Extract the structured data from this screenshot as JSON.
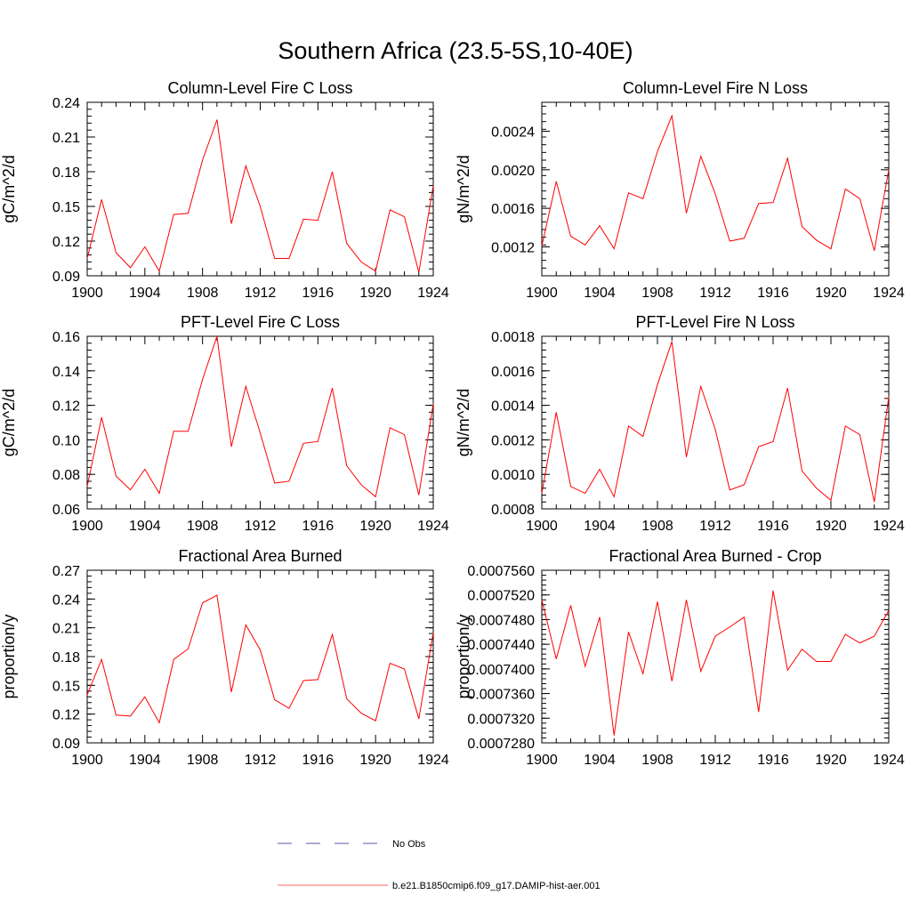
{
  "figure_title": "Southern Africa (23.5-5S,10-40E)",
  "x_years": [
    1900,
    1901,
    1902,
    1903,
    1904,
    1905,
    1906,
    1907,
    1908,
    1909,
    1910,
    1911,
    1912,
    1913,
    1914,
    1915,
    1916,
    1917,
    1918,
    1919,
    1920,
    1921,
    1922,
    1923,
    1924
  ],
  "chart_data": [
    {
      "type": "line",
      "title": "Column-Level Fire C Loss",
      "ylabel": "gC/m^2/d",
      "xlim": [
        1900,
        1924
      ],
      "x_ticks": [
        "1900",
        "1904",
        "1908",
        "1912",
        "1916",
        "1920",
        "1924"
      ],
      "ylim": [
        0.09,
        0.24
      ],
      "y_ticks": [
        "0.09",
        "0.12",
        "0.15",
        "0.18",
        "0.21",
        "0.24"
      ],
      "series": [
        {
          "color": "#ff0000",
          "values": [
            0.105,
            0.156,
            0.11,
            0.097,
            0.115,
            0.094,
            0.143,
            0.144,
            0.19,
            0.225,
            0.135,
            0.185,
            0.15,
            0.105,
            0.105,
            0.139,
            0.138,
            0.18,
            0.118,
            0.102,
            0.094,
            0.147,
            0.141,
            0.093,
            0.168
          ]
        }
      ]
    },
    {
      "type": "line",
      "title": "Column-Level Fire N Loss",
      "ylabel": "gN/m^2/d",
      "xlim": [
        1900,
        1924
      ],
      "x_ticks": [
        "1900",
        "1904",
        "1908",
        "1912",
        "1916",
        "1920",
        "1924"
      ],
      "ylim": [
        0.0009,
        0.0027
      ],
      "y_ticks": [
        "0.0012",
        "0.0016",
        "0.0020",
        "0.0024"
      ],
      "series": [
        {
          "color": "#ff0000",
          "values": [
            0.00121,
            0.00188,
            0.00131,
            0.00122,
            0.00142,
            0.00118,
            0.00176,
            0.0017,
            0.00219,
            0.00256,
            0.00155,
            0.00214,
            0.00175,
            0.00126,
            0.00129,
            0.00165,
            0.00166,
            0.00212,
            0.00141,
            0.00127,
            0.00118,
            0.0018,
            0.0017,
            0.00116,
            0.002
          ]
        }
      ]
    },
    {
      "type": "line",
      "title": "PFT-Level Fire C Loss",
      "ylabel": "gC/m^2/d",
      "xlim": [
        1900,
        1924
      ],
      "x_ticks": [
        "1900",
        "1904",
        "1908",
        "1912",
        "1916",
        "1920",
        "1924"
      ],
      "ylim": [
        0.06,
        0.16
      ],
      "y_ticks": [
        "0.06",
        "0.08",
        "0.10",
        "0.12",
        "0.14",
        "0.16"
      ],
      "series": [
        {
          "color": "#ff0000",
          "values": [
            0.073,
            0.113,
            0.079,
            0.071,
            0.083,
            0.069,
            0.105,
            0.105,
            0.135,
            0.16,
            0.096,
            0.131,
            0.104,
            0.075,
            0.076,
            0.098,
            0.099,
            0.13,
            0.085,
            0.074,
            0.067,
            0.107,
            0.103,
            0.068,
            0.121
          ]
        }
      ]
    },
    {
      "type": "line",
      "title": "PFT-Level Fire N Loss",
      "ylabel": "gN/m^2/d",
      "xlim": [
        1900,
        1924
      ],
      "x_ticks": [
        "1900",
        "1904",
        "1908",
        "1912",
        "1916",
        "1920",
        "1924"
      ],
      "ylim": [
        0.0008,
        0.0018
      ],
      "y_ticks": [
        "0.0008",
        "0.0010",
        "0.0012",
        "0.0014",
        "0.0016",
        "0.0018"
      ],
      "series": [
        {
          "color": "#ff0000",
          "values": [
            0.00089,
            0.00136,
            0.00093,
            0.00089,
            0.00103,
            0.00087,
            0.00128,
            0.00122,
            0.00152,
            0.00177,
            0.0011,
            0.00151,
            0.00126,
            0.00091,
            0.00094,
            0.00116,
            0.00119,
            0.0015,
            0.00102,
            0.00092,
            0.00085,
            0.00128,
            0.00123,
            0.00084,
            0.00145
          ]
        }
      ]
    },
    {
      "type": "line",
      "title": "Fractional Area Burned",
      "ylabel": "proportion/y",
      "xlim": [
        1900,
        1924
      ],
      "x_ticks": [
        "1900",
        "1904",
        "1908",
        "1912",
        "1916",
        "1920",
        "1924"
      ],
      "ylim": [
        0.09,
        0.27
      ],
      "y_ticks": [
        "0.09",
        "0.12",
        "0.15",
        "0.18",
        "0.21",
        "0.24",
        "0.27"
      ],
      "series": [
        {
          "color": "#ff0000",
          "values": [
            0.14,
            0.177,
            0.119,
            0.118,
            0.138,
            0.111,
            0.177,
            0.188,
            0.236,
            0.244,
            0.143,
            0.213,
            0.187,
            0.135,
            0.126,
            0.155,
            0.156,
            0.203,
            0.136,
            0.121,
            0.113,
            0.173,
            0.167,
            0.115,
            0.205
          ]
        }
      ]
    },
    {
      "type": "line",
      "title": "Fractional Area Burned - Crop",
      "ylabel": "proportion/y",
      "xlim": [
        1900,
        1924
      ],
      "x_ticks": [
        "1900",
        "1904",
        "1908",
        "1912",
        "1916",
        "1920",
        "1924"
      ],
      "ylim": [
        0.000728,
        0.000756
      ],
      "y_ticks": [
        "0.0007280",
        "0.0007320",
        "0.0007360",
        "0.0007400",
        "0.0007440",
        "0.0007480",
        "0.0007520",
        "0.0007560"
      ],
      "series": [
        {
          "color": "#ff0000",
          "values": [
            0.0007512,
            0.0007416,
            0.0007503,
            0.0007404,
            0.0007484,
            0.0007292,
            0.000746,
            0.0007392,
            0.0007509,
            0.000738,
            0.0007512,
            0.0007396,
            0.0007453,
            0.0007468,
            0.0007484,
            0.000733,
            0.0007527,
            0.0007398,
            0.0007432,
            0.0007412,
            0.0007412,
            0.0007456,
            0.0007442,
            0.0007453,
            0.0007495
          ]
        }
      ]
    }
  ],
  "legend": [
    {
      "label": "No Obs",
      "color": "#5555aa",
      "style": "dashed"
    },
    {
      "label": "b.e21.B1850cmip6.f09_g17.DAMIP-hist-aer.001",
      "color": "#ff6666",
      "style": "solid"
    }
  ]
}
